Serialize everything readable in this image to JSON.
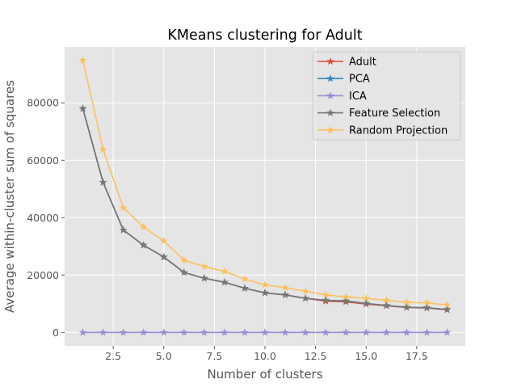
{
  "chart_data": {
    "type": "line",
    "title": "KMeans clustering for Adult",
    "xlabel": "Number of clusters",
    "ylabel": "Average within-cluster sum of squares",
    "xlim": [
      0.1,
      19.9
    ],
    "ylim": [
      -4700,
      99500
    ],
    "x_ticks": [
      2.5,
      5.0,
      7.5,
      10.0,
      12.5,
      15.0,
      17.5
    ],
    "x_tick_labels": [
      "2.5",
      "5.0",
      "7.5",
      "10.0",
      "12.5",
      "15.0",
      "17.5"
    ],
    "y_ticks": [
      0,
      20000,
      40000,
      60000,
      80000
    ],
    "y_tick_labels": [
      "0",
      "20000",
      "40000",
      "60000",
      "80000"
    ],
    "grid": true,
    "legend_position": "top-right",
    "marker": "star",
    "x": [
      1,
      2,
      3,
      4,
      5,
      6,
      7,
      8,
      9,
      10,
      11,
      12,
      13,
      14,
      15,
      16,
      17,
      18,
      19
    ],
    "series": [
      {
        "name": "Adult",
        "color": "#E24A33",
        "values": [
          78000,
          52300,
          35700,
          30400,
          26300,
          20900,
          18900,
          17500,
          15400,
          13800,
          13100,
          11900,
          10900,
          10700,
          9900,
          9300,
          8700,
          8500,
          7900
        ]
      },
      {
        "name": "PCA",
        "color": "#348ABD",
        "values": [
          78000,
          52300,
          35700,
          30400,
          26300,
          20900,
          18900,
          17500,
          15400,
          13800,
          13100,
          11900,
          11200,
          11000,
          10100,
          9400,
          8800,
          8600,
          8000
        ]
      },
      {
        "name": "ICA",
        "color": "#988ED5",
        "values": [
          0,
          0,
          0,
          0,
          0,
          0,
          0,
          0,
          0,
          0,
          0,
          0,
          0,
          0,
          0,
          0,
          0,
          0,
          0
        ]
      },
      {
        "name": "Feature Selection",
        "color": "#777777",
        "values": [
          78000,
          52300,
          35700,
          30400,
          26300,
          20900,
          18900,
          17500,
          15400,
          13800,
          13100,
          11900,
          11200,
          11000,
          10100,
          9400,
          8800,
          8600,
          8000
        ]
      },
      {
        "name": "Random Projection",
        "color": "#FBC15E",
        "values": [
          94800,
          63800,
          43400,
          36800,
          31900,
          25200,
          23000,
          21300,
          18600,
          16600,
          15600,
          14400,
          13100,
          12400,
          11900,
          11200,
          10500,
          10300,
          9600
        ]
      }
    ]
  }
}
